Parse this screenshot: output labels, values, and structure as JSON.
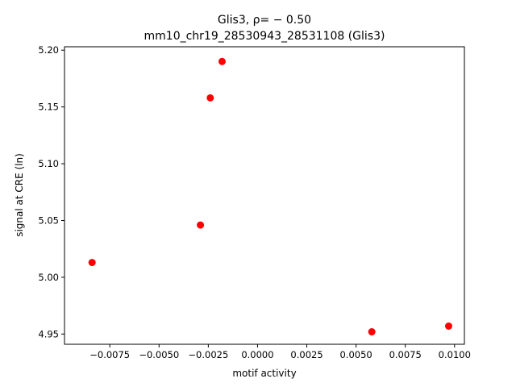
{
  "chart_data": {
    "type": "scatter",
    "title": "Glis3, ρ= − 0.50",
    "subtitle": "mm10_chr19_28530943_28531108 (Glis3)",
    "xlabel": "motif activity",
    "ylabel": "signal at CRE (ln)",
    "xlim": [
      -0.0098,
      0.0105
    ],
    "ylim": [
      4.941,
      5.203
    ],
    "x_ticks": [
      -0.0075,
      -0.005,
      -0.0025,
      0.0,
      0.0025,
      0.005,
      0.0075,
      0.01
    ],
    "x_tick_labels": [
      "−0.0075",
      "−0.0050",
      "−0.0025",
      "0.0000",
      "0.0025",
      "0.0050",
      "0.0075",
      "0.0100"
    ],
    "y_ticks": [
      4.95,
      5.0,
      5.05,
      5.1,
      5.15,
      5.2
    ],
    "y_tick_labels": [
      "4.95",
      "5.00",
      "5.05",
      "5.10",
      "5.15",
      "5.20"
    ],
    "grid": false,
    "marker_color": "#ff0000",
    "points": [
      {
        "x": -0.0084,
        "y": 5.013
      },
      {
        "x": -0.0029,
        "y": 5.046
      },
      {
        "x": -0.0024,
        "y": 5.158
      },
      {
        "x": -0.0018,
        "y": 5.19
      },
      {
        "x": 0.0058,
        "y": 4.952
      },
      {
        "x": 0.0097,
        "y": 4.957
      }
    ]
  }
}
